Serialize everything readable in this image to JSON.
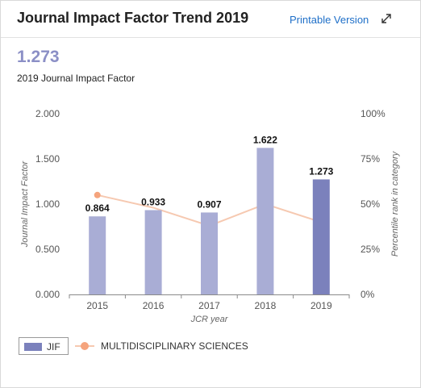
{
  "header": {
    "title": "Journal Impact Factor Trend 2019",
    "printable_label": "Printable Version"
  },
  "summary": {
    "value": "1.273",
    "label": "2019 Journal Impact Factor"
  },
  "colors": {
    "bar": "#a9add5",
    "bar_highlight": "#7b81bc",
    "line": "#f6c9b1",
    "marker": "#f5a47d",
    "accent_value": "#8b8fc6",
    "link": "#1e6fc8"
  },
  "chart_data": {
    "type": "bar",
    "categories": [
      "2015",
      "2016",
      "2017",
      "2018",
      "2019"
    ],
    "series": [
      {
        "name": "JIF",
        "type": "bar",
        "values": [
          0.864,
          0.933,
          0.907,
          1.622,
          1.273
        ],
        "labels": [
          "0.864",
          "0.933",
          "0.907",
          "1.622",
          "1.273"
        ],
        "highlight_index": 4
      },
      {
        "name": "MULTIDISCIPLINARY SCIENCES",
        "type": "line",
        "axis": "right",
        "values": [
          55,
          48,
          38,
          50,
          40
        ]
      }
    ],
    "xlabel": "JCR year",
    "ylabel": "Journal Impact Factor",
    "y2label": "Percentile rank in category",
    "ylim": [
      0,
      2
    ],
    "y2lim": [
      0,
      100
    ],
    "yticks": [
      "0.000",
      "0.500",
      "1.000",
      "1.500",
      "2.000"
    ],
    "y2ticks": [
      "0%",
      "25%",
      "50%",
      "75%",
      "100%"
    ],
    "grid": false,
    "legend": "bottom-left"
  }
}
